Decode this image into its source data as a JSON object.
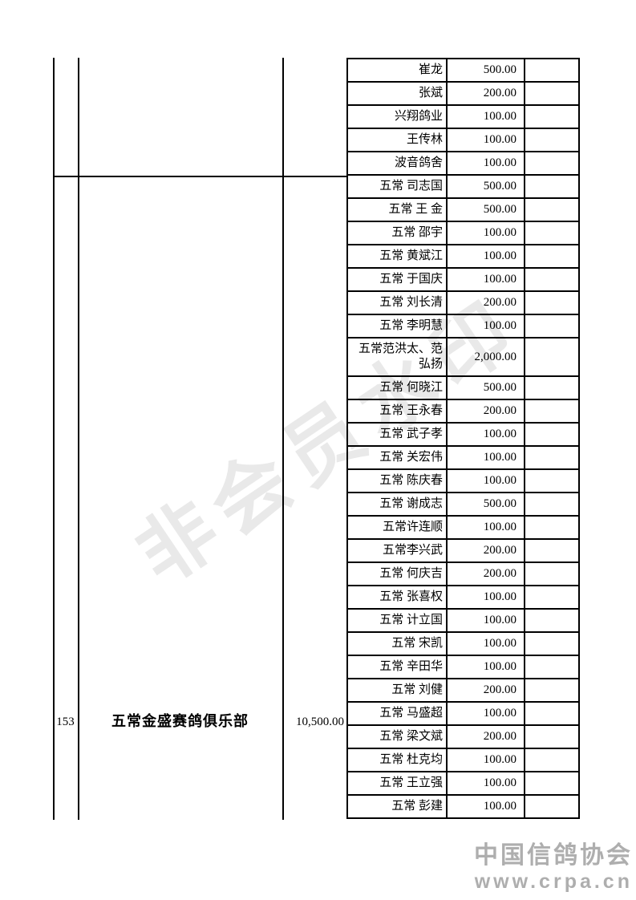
{
  "watermark": "非会员水印",
  "logo": {
    "name": "中国信鸽协会",
    "url": "www.crpa.cn"
  },
  "colors": {
    "border": "#000000",
    "logo": "#aeaeae",
    "watermark": "#e9e9e9"
  },
  "carryover_rows": [
    {
      "name": "崔龙",
      "amount": "500.00"
    },
    {
      "name": "张斌",
      "amount": "200.00"
    },
    {
      "name": "兴翔鸽业",
      "amount": "100.00"
    },
    {
      "name": "王传林",
      "amount": "100.00"
    },
    {
      "name": "波音鸽舍",
      "amount": "100.00"
    }
  ],
  "entry": {
    "serial": "153",
    "club": "五常金盛赛鸽俱乐部",
    "total": "10,500.00",
    "rows": [
      {
        "name": "五常 司志国",
        "amount": "500.00"
      },
      {
        "name": "五常 王 金",
        "amount": "500.00"
      },
      {
        "name": "五常 邵宇",
        "amount": "100.00"
      },
      {
        "name": "五常 黄斌江",
        "amount": "100.00"
      },
      {
        "name": "五常 于国庆",
        "amount": "100.00"
      },
      {
        "name": "五常 刘长清",
        "amount": "200.00"
      },
      {
        "name": "五常 李明慧",
        "amount": "100.00"
      },
      {
        "name": "五常范洪太、范弘扬",
        "amount": "2,000.00",
        "double": true
      },
      {
        "name": "五常 何晓江",
        "amount": "500.00"
      },
      {
        "name": "五常 王永春",
        "amount": "200.00"
      },
      {
        "name": "五常 武子孝",
        "amount": "100.00"
      },
      {
        "name": "五常 关宏伟",
        "amount": "100.00"
      },
      {
        "name": "五常 陈庆春",
        "amount": "100.00"
      },
      {
        "name": "五常 谢成志",
        "amount": "500.00"
      },
      {
        "name": "五常许连顺",
        "amount": "100.00"
      },
      {
        "name": "五常李兴武",
        "amount": "200.00"
      },
      {
        "name": "五常 何庆吉",
        "amount": "200.00"
      },
      {
        "name": "五常 张喜权",
        "amount": "100.00"
      },
      {
        "name": "五常 计立国",
        "amount": "100.00"
      },
      {
        "name": "五常 宋凯",
        "amount": "100.00"
      },
      {
        "name": "五常 辛田华",
        "amount": "100.00"
      },
      {
        "name": "五常 刘健",
        "amount": "200.00"
      },
      {
        "name": "五常 马盛超",
        "amount": "100.00"
      },
      {
        "name": "五常 梁文斌",
        "amount": "200.00"
      },
      {
        "name": "五常 杜克均",
        "amount": "100.00"
      },
      {
        "name": "五常 王立强",
        "amount": "100.00"
      },
      {
        "name": "五常 彭建",
        "amount": "100.00"
      }
    ]
  }
}
